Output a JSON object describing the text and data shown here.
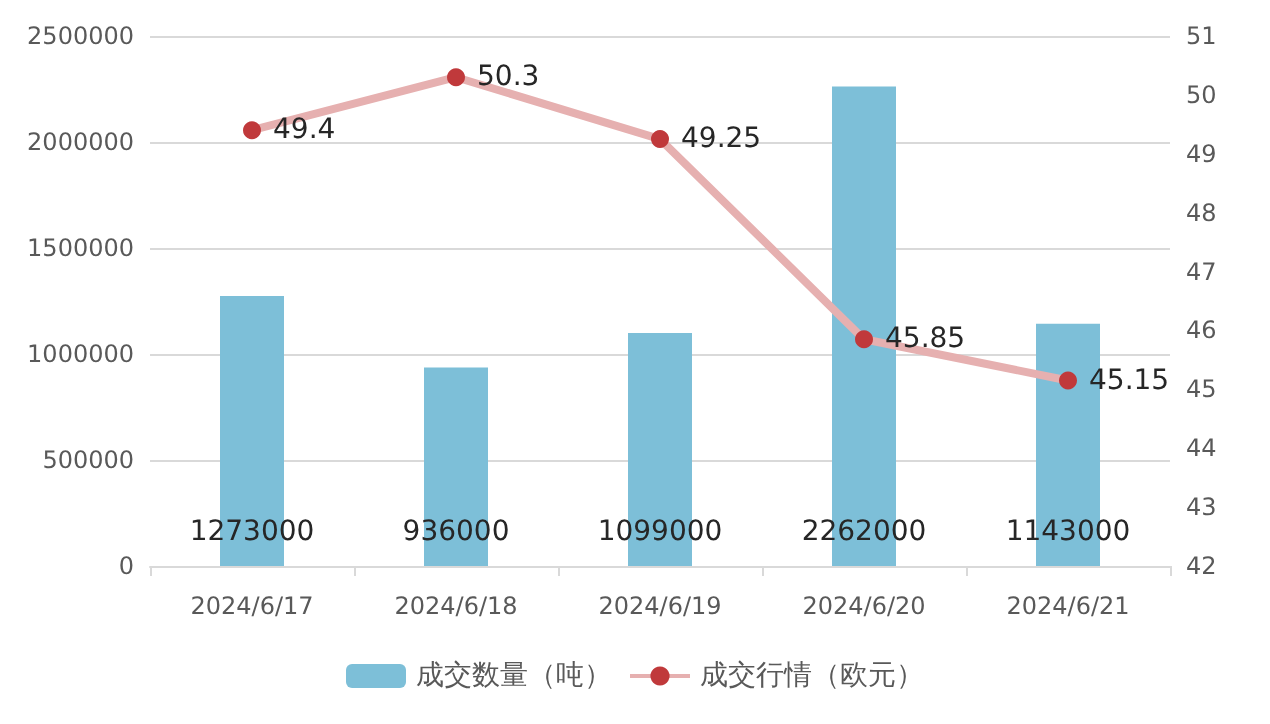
{
  "chart_data": {
    "type": "bar",
    "categories": [
      "2024/6/17",
      "2024/6/18",
      "2024/6/19",
      "2024/6/20",
      "2024/6/21"
    ],
    "series": [
      {
        "name": "成交数量（吨）",
        "color": "#7dbfd8",
        "values": [
          1273000,
          936000,
          1099000,
          2262000,
          1143000
        ]
      },
      {
        "name": "成交行情（欧元）",
        "type": "line",
        "axis": "y2",
        "color": "#e6b0b0",
        "marker": "circle",
        "values": [
          49.4,
          50.3,
          49.25,
          45.85,
          45.15
        ]
      }
    ],
    "ylim": [
      0,
      2500000
    ],
    "yticks": [
      0,
      500000,
      1000000,
      1500000,
      2000000,
      2500000
    ],
    "y2lim": [
      42,
      51
    ],
    "y2ticks": [
      42,
      43,
      44,
      45,
      46,
      47,
      48,
      49,
      50,
      51
    ],
    "grid": "y",
    "legend": "bottom",
    "data_labels": true
  }
}
